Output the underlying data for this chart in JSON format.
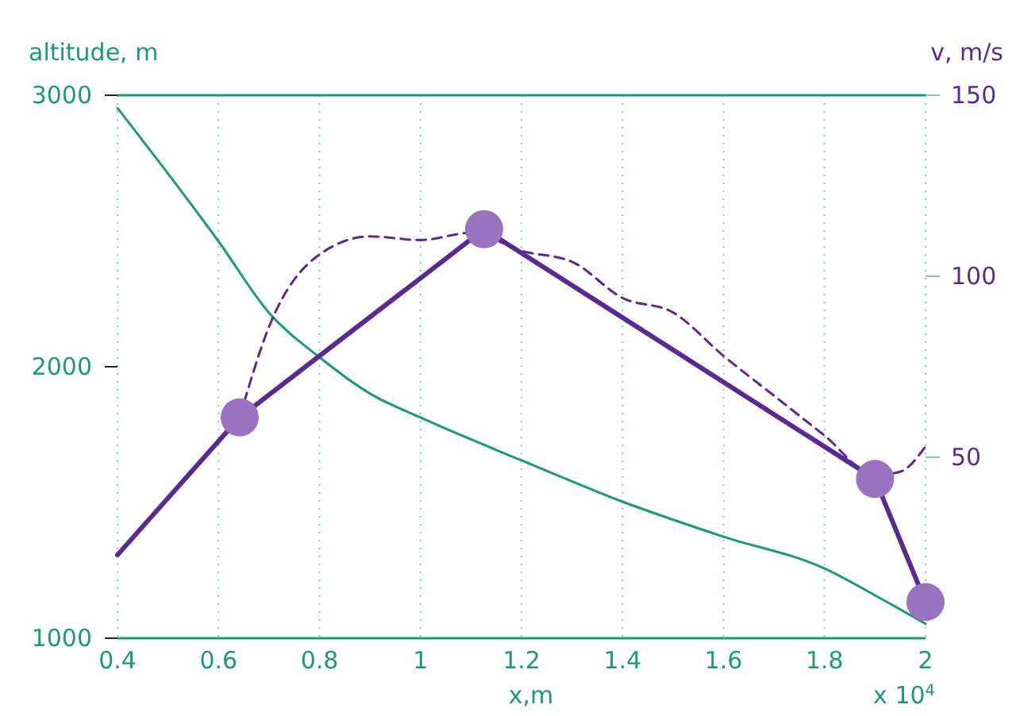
{
  "chart_data": {
    "type": "line",
    "xlabel": "x,m",
    "ylabel": "altitude, m",
    "y2label": "v, m/s",
    "annotations": [
      "x 10$^{4}$"
    ],
    "xlim": [
      0.4,
      2
    ],
    "xticks": [
      0.4,
      0.6,
      0.8,
      1,
      1.2,
      1.4,
      1.6,
      1.8,
      2
    ],
    "ylim": [
      1000,
      3000
    ],
    "yticks": [
      1000,
      2000,
      3000
    ],
    "y2lim": [
      0,
      150
    ],
    "y2ticks": [
      50,
      100,
      150
    ],
    "grid": "x",
    "series": [
      {
        "color": "#1a9a7a",
        "x": [
          0.4,
          0.6,
          0.7,
          0.8,
          0.9,
          1.0,
          1.2,
          1.4,
          1.6,
          1.8,
          1.9,
          2.0
        ],
        "values": [
          2953,
          2462,
          2199,
          2035,
          1901,
          1813,
          1655,
          1503,
          1374,
          1257,
          1158,
          1053
        ],
        "marker": "none",
        "line_style": "solid"
      },
      {
        "color": "#5b2a91",
        "axis": "y2",
        "x": [
          0.642,
          0.7,
          0.8,
          0.9,
          1.0,
          1.1,
          1.2,
          1.3,
          1.4,
          1.5,
          1.6,
          1.7,
          1.8,
          1.9,
          1.95,
          2.0
        ],
        "values": [
          61,
          86,
          106,
          111,
          110,
          112,
          107,
          104,
          94,
          90,
          78,
          67,
          56,
          45,
          46,
          53
        ],
        "marker": "none",
        "line_style": "dashed"
      },
      {
        "color": "#5b2a91",
        "axis": "y2",
        "x": [
          0.4,
          0.642,
          1.126,
          1.9,
          2.0
        ],
        "values": [
          23,
          61,
          113,
          44,
          10
        ],
        "marker": "none",
        "line_style": "solid"
      },
      {
        "type": "scatter",
        "color": "#9b72bf",
        "axis": "y2",
        "x": [
          0.642,
          1.126,
          1.9,
          2.0
        ],
        "values": [
          61,
          113,
          44,
          10
        ],
        "marker": "circle"
      }
    ]
  }
}
